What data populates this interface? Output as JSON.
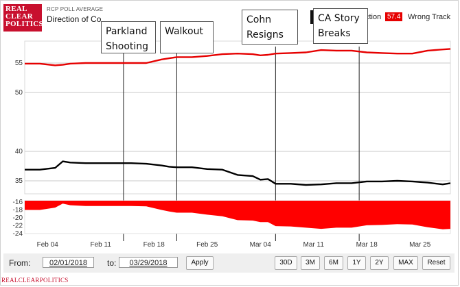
{
  "header": {
    "brand_lines": [
      "REAL",
      "CLEAR",
      "POLITICS"
    ],
    "subtitle": "RCP POLL AVERAGE",
    "title": "Direction of Co"
  },
  "legend": {
    "left_fragment": "ction",
    "wrong_track_value": "57.4",
    "wrong_track_label": "Wrong Track"
  },
  "annotations": [
    {
      "id": "parkland",
      "lines": [
        "Parkland",
        "Shooting"
      ],
      "date": "Feb 14"
    },
    {
      "id": "walkout",
      "lines": [
        "Walkout"
      ],
      "date": "Feb 21"
    },
    {
      "id": "cohn",
      "lines": [
        "Cohn",
        "Resigns"
      ],
      "date": "Mar 06"
    },
    {
      "id": "castory",
      "lines": [
        "CA Story",
        "Breaks"
      ],
      "date": "Mar 17"
    }
  ],
  "chart_data": {
    "type": "line",
    "x": [
      "Feb 01",
      "Feb 03",
      "Feb 05",
      "Feb 06",
      "Feb 07",
      "Feb 09",
      "Feb 11",
      "Feb 13",
      "Feb 15",
      "Feb 17",
      "Feb 19",
      "Feb 20",
      "Feb 21",
      "Feb 23",
      "Feb 25",
      "Feb 27",
      "Mar 01",
      "Mar 03",
      "Mar 04",
      "Mar 05",
      "Mar 06",
      "Mar 08",
      "Mar 10",
      "Mar 12",
      "Mar 14",
      "Mar 16",
      "Mar 18",
      "Mar 20",
      "Mar 22",
      "Mar 24",
      "Mar 26",
      "Mar 28",
      "Mar 29"
    ],
    "series": [
      {
        "name": "Wrong Track",
        "color": "#e60000",
        "values": [
          54.9,
          54.9,
          54.6,
          54.7,
          54.9,
          55.0,
          55.0,
          55.0,
          55.0,
          55.0,
          55.6,
          55.8,
          56.0,
          56.0,
          56.2,
          56.5,
          56.6,
          56.5,
          56.3,
          56.4,
          56.6,
          56.7,
          56.8,
          57.2,
          57.1,
          57.1,
          56.8,
          56.7,
          56.6,
          56.6,
          57.1,
          57.3,
          57.4
        ]
      },
      {
        "name": "Right Direction",
        "color": "#000000",
        "values": [
          36.9,
          36.9,
          37.2,
          38.3,
          38.1,
          38.0,
          38.0,
          38.0,
          38.0,
          37.9,
          37.6,
          37.4,
          37.3,
          37.3,
          37.0,
          36.9,
          36.0,
          35.8,
          35.2,
          35.3,
          34.5,
          34.5,
          34.3,
          34.4,
          34.6,
          34.6,
          34.9,
          34.9,
          35.0,
          34.9,
          34.7,
          34.4,
          34.6
        ]
      }
    ],
    "y_ticks": [
      35,
      40,
      50,
      55
    ],
    "ylim": [
      32,
      58
    ],
    "spread_ticks": [
      -16,
      -18,
      -20,
      -22,
      -24
    ],
    "spread_ylim": [
      -24,
      -15.5
    ],
    "x_tick_labels": [
      "Feb 04",
      "Feb 11",
      "Feb 18",
      "Feb 25",
      "Mar 04",
      "Mar 11",
      "Mar 18",
      "Mar 25"
    ],
    "grid": true
  },
  "controls": {
    "from_label": "From:",
    "from_value": "02/01/2018",
    "to_label": "to:",
    "to_value": "03/29/2018",
    "apply_label": "Apply",
    "ranges": [
      "30D",
      "3M",
      "6M",
      "1Y",
      "2Y",
      "MAX",
      "Reset"
    ]
  },
  "footer": "REALCLEARPOLITICS"
}
